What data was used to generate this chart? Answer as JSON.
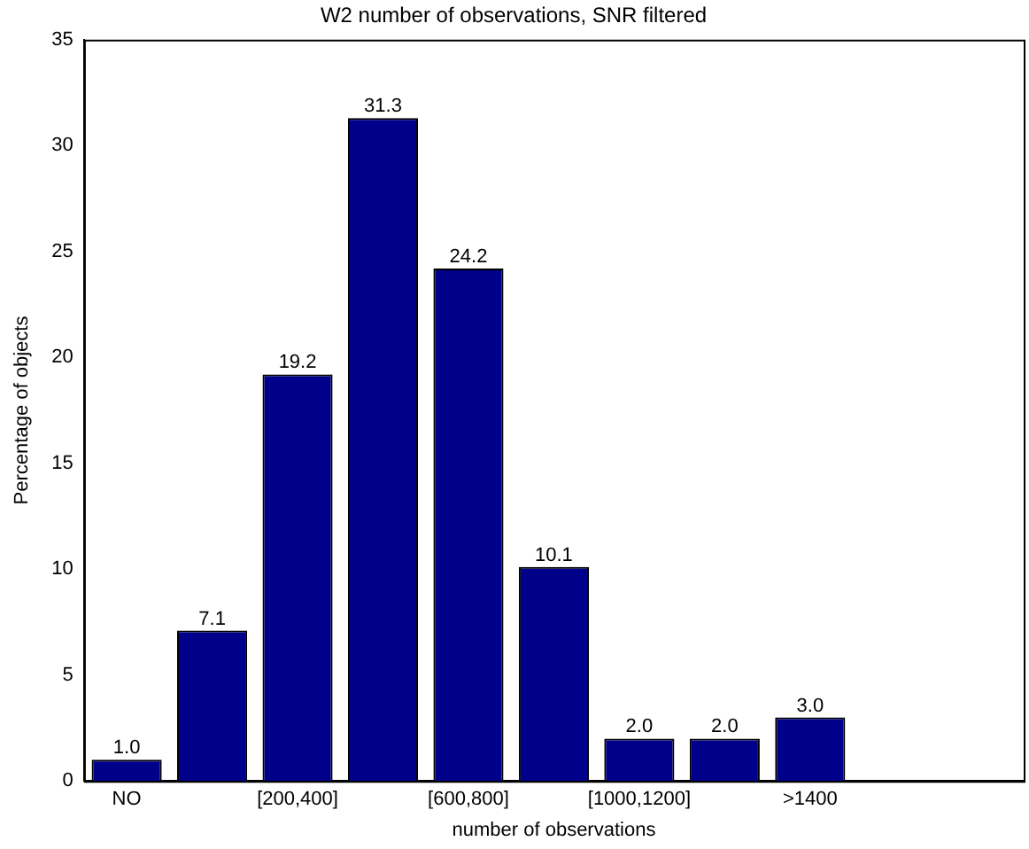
{
  "chart_data": {
    "type": "bar",
    "title": "W2 number of observations, SNR filtered",
    "xlabel": "number of observations",
    "ylabel": "Percentage of objects",
    "categories": [
      "NO",
      null,
      "[200,400]",
      null,
      "[600,800]",
      null,
      "[1000,1200]",
      null,
      ">1400",
      null,
      null
    ],
    "values": [
      1.0,
      7.1,
      19.2,
      31.3,
      24.2,
      10.1,
      2.0,
      2.0,
      3.0,
      null,
      null
    ],
    "value_labels": [
      "1.0",
      "7.1",
      "19.2",
      "31.3",
      "24.2",
      "10.1",
      "2.0",
      "2.0",
      "3.0",
      null,
      null
    ],
    "color": "#00008b",
    "ylim": [
      0,
      35
    ],
    "yticks": [
      0,
      5,
      10,
      15,
      20,
      25,
      30,
      35
    ],
    "grid": false,
    "legend": false
  }
}
